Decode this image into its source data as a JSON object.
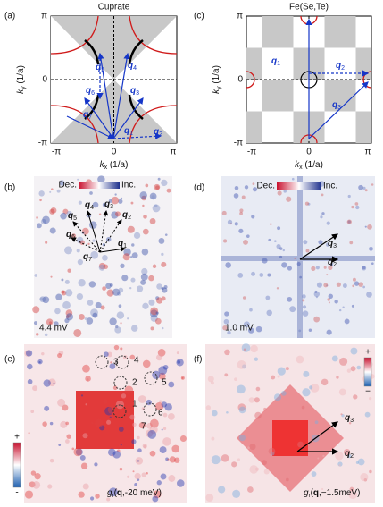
{
  "panels": [
    {
      "label": "(a)",
      "title": "Cuprate",
      "yticks": [
        "π",
        "0",
        "-π"
      ],
      "xticks": [
        "-π",
        "0",
        "π"
      ],
      "xlabel": {
        "symbol": "k",
        "sub": "x",
        "unit": " (1/a)"
      },
      "ylabel": {
        "symbol": "k",
        "sub": "y",
        "unit": " (1/a)"
      },
      "vectors": [
        {
          "symbol": "q",
          "sub": "1"
        },
        {
          "symbol": "q",
          "sub": "2"
        },
        {
          "symbol": "q",
          "sub": "3"
        },
        {
          "symbol": "q",
          "sub": "4"
        },
        {
          "symbol": "q",
          "sub": "5"
        },
        {
          "symbol": "q",
          "sub": "6"
        },
        {
          "symbol": "q",
          "sub": "7"
        }
      ]
    },
    {
      "label": "(b)",
      "colorbar": {
        "low": "Dec.",
        "high": "Inc."
      },
      "vectors": [
        {
          "symbol": "q",
          "sub": "1"
        },
        {
          "symbol": "q",
          "sub": "2"
        },
        {
          "symbol": "q",
          "sub": "3"
        },
        {
          "symbol": "q",
          "sub": "4"
        },
        {
          "symbol": "q",
          "sub": "5"
        },
        {
          "symbol": "q",
          "sub": "6"
        },
        {
          "symbol": "q",
          "sub": "7"
        }
      ],
      "energy": "4.4 mV"
    },
    {
      "label": "(c)",
      "title": "Fe(Se,Te)",
      "yticks": [
        "π",
        "0",
        "-π"
      ],
      "xticks": [
        "-π",
        "0",
        "π"
      ],
      "xlabel": {
        "symbol": "k",
        "sub": "x",
        "unit": " (1/a)"
      },
      "ylabel": {
        "symbol": "k",
        "sub": "y",
        "unit": " (1/a)"
      },
      "vectors": [
        {
          "symbol": "q",
          "sub": "1"
        },
        {
          "symbol": "q",
          "sub": "2"
        },
        {
          "symbol": "q",
          "sub": "3"
        }
      ]
    },
    {
      "label": "(d)",
      "colorbar": {
        "low": "Dec.",
        "high": "Inc."
      },
      "vectors": [
        {
          "symbol": "q",
          "sub": "3"
        },
        {
          "symbol": "q",
          "sub": "2"
        }
      ],
      "energy": "1.0 mV"
    },
    {
      "label": "(e)",
      "spots": [
        {
          "text": "1",
          "color": "#d0609a"
        },
        {
          "text": "2",
          "color": "#222222"
        },
        {
          "text": "3",
          "color": "#222222"
        },
        {
          "text": "4",
          "color": "#d0609a"
        },
        {
          "text": "5",
          "color": "#d0609a"
        },
        {
          "text": "6",
          "color": "#222222"
        },
        {
          "text": "7",
          "color": "#222222"
        }
      ],
      "colorbar": {
        "high": "+",
        "low": "-"
      },
      "caption": {
        "symbol": "g",
        "sub": "r",
        "open": "(",
        "q": "q",
        "close": ",-20 meV)"
      }
    },
    {
      "label": "(f)",
      "colorbar": {
        "high": "+",
        "low": "−"
      },
      "vectors": [
        {
          "symbol": "q",
          "sub": "3"
        },
        {
          "symbol": "q",
          "sub": "2"
        }
      ],
      "caption": {
        "symbol": "g",
        "sub": "r",
        "open": "(",
        "q": "q",
        "close": ",−1.5meV)"
      }
    }
  ]
}
